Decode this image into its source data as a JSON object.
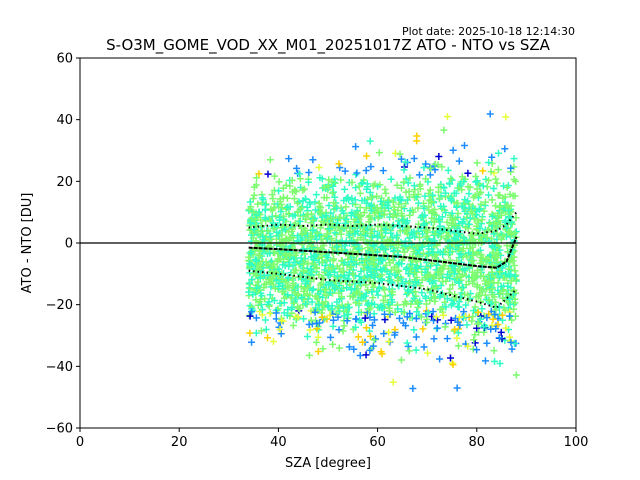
{
  "plot_date": "Plot date: 2025-10-18 12:14:30",
  "chart_data": {
    "type": "scatter",
    "title": "S-O3M_GOME_VOD_XX_M01_20251017Z ATO - NTO vs SZA",
    "xlabel": "SZA [degree]",
    "ylabel": "ATO - NTO [DU]",
    "xlim": [
      0,
      100
    ],
    "ylim": [
      -60,
      60
    ],
    "xticks": [
      0,
      20,
      40,
      60,
      80,
      100
    ],
    "yticks": [
      -60,
      -40,
      -20,
      0,
      20,
      40,
      60
    ],
    "grid": false,
    "zero_line": 0,
    "marker": "plus",
    "point_colors": [
      "#7cfc6e",
      "#2fffc4",
      "#1a8cff",
      "#ffd000",
      "#e6ff3a",
      "#0000d0"
    ],
    "sza_range": [
      34,
      88
    ],
    "median_line": {
      "x": [
        34,
        40,
        45,
        50,
        55,
        60,
        65,
        70,
        75,
        80,
        84,
        86,
        88
      ],
      "y": [
        -1.5,
        -2,
        -2.5,
        -3,
        -3.5,
        -4,
        -4.5,
        -5.5,
        -6.5,
        -7.5,
        -8,
        -6,
        2
      ]
    },
    "upper_dotted": {
      "x": [
        34,
        40,
        45,
        50,
        55,
        60,
        65,
        70,
        75,
        80,
        84,
        86,
        88
      ],
      "y": [
        5,
        6,
        5.5,
        6,
        5.5,
        6,
        5.5,
        5,
        4,
        3,
        4,
        6,
        10
      ]
    },
    "lower_dotted": {
      "x": [
        34,
        40,
        45,
        50,
        55,
        60,
        65,
        70,
        75,
        80,
        84,
        86,
        88
      ],
      "y": [
        -9,
        -10,
        -11,
        -12,
        -12.5,
        -13,
        -14,
        -15,
        -17,
        -19,
        -21,
        -18,
        -15
      ]
    }
  }
}
